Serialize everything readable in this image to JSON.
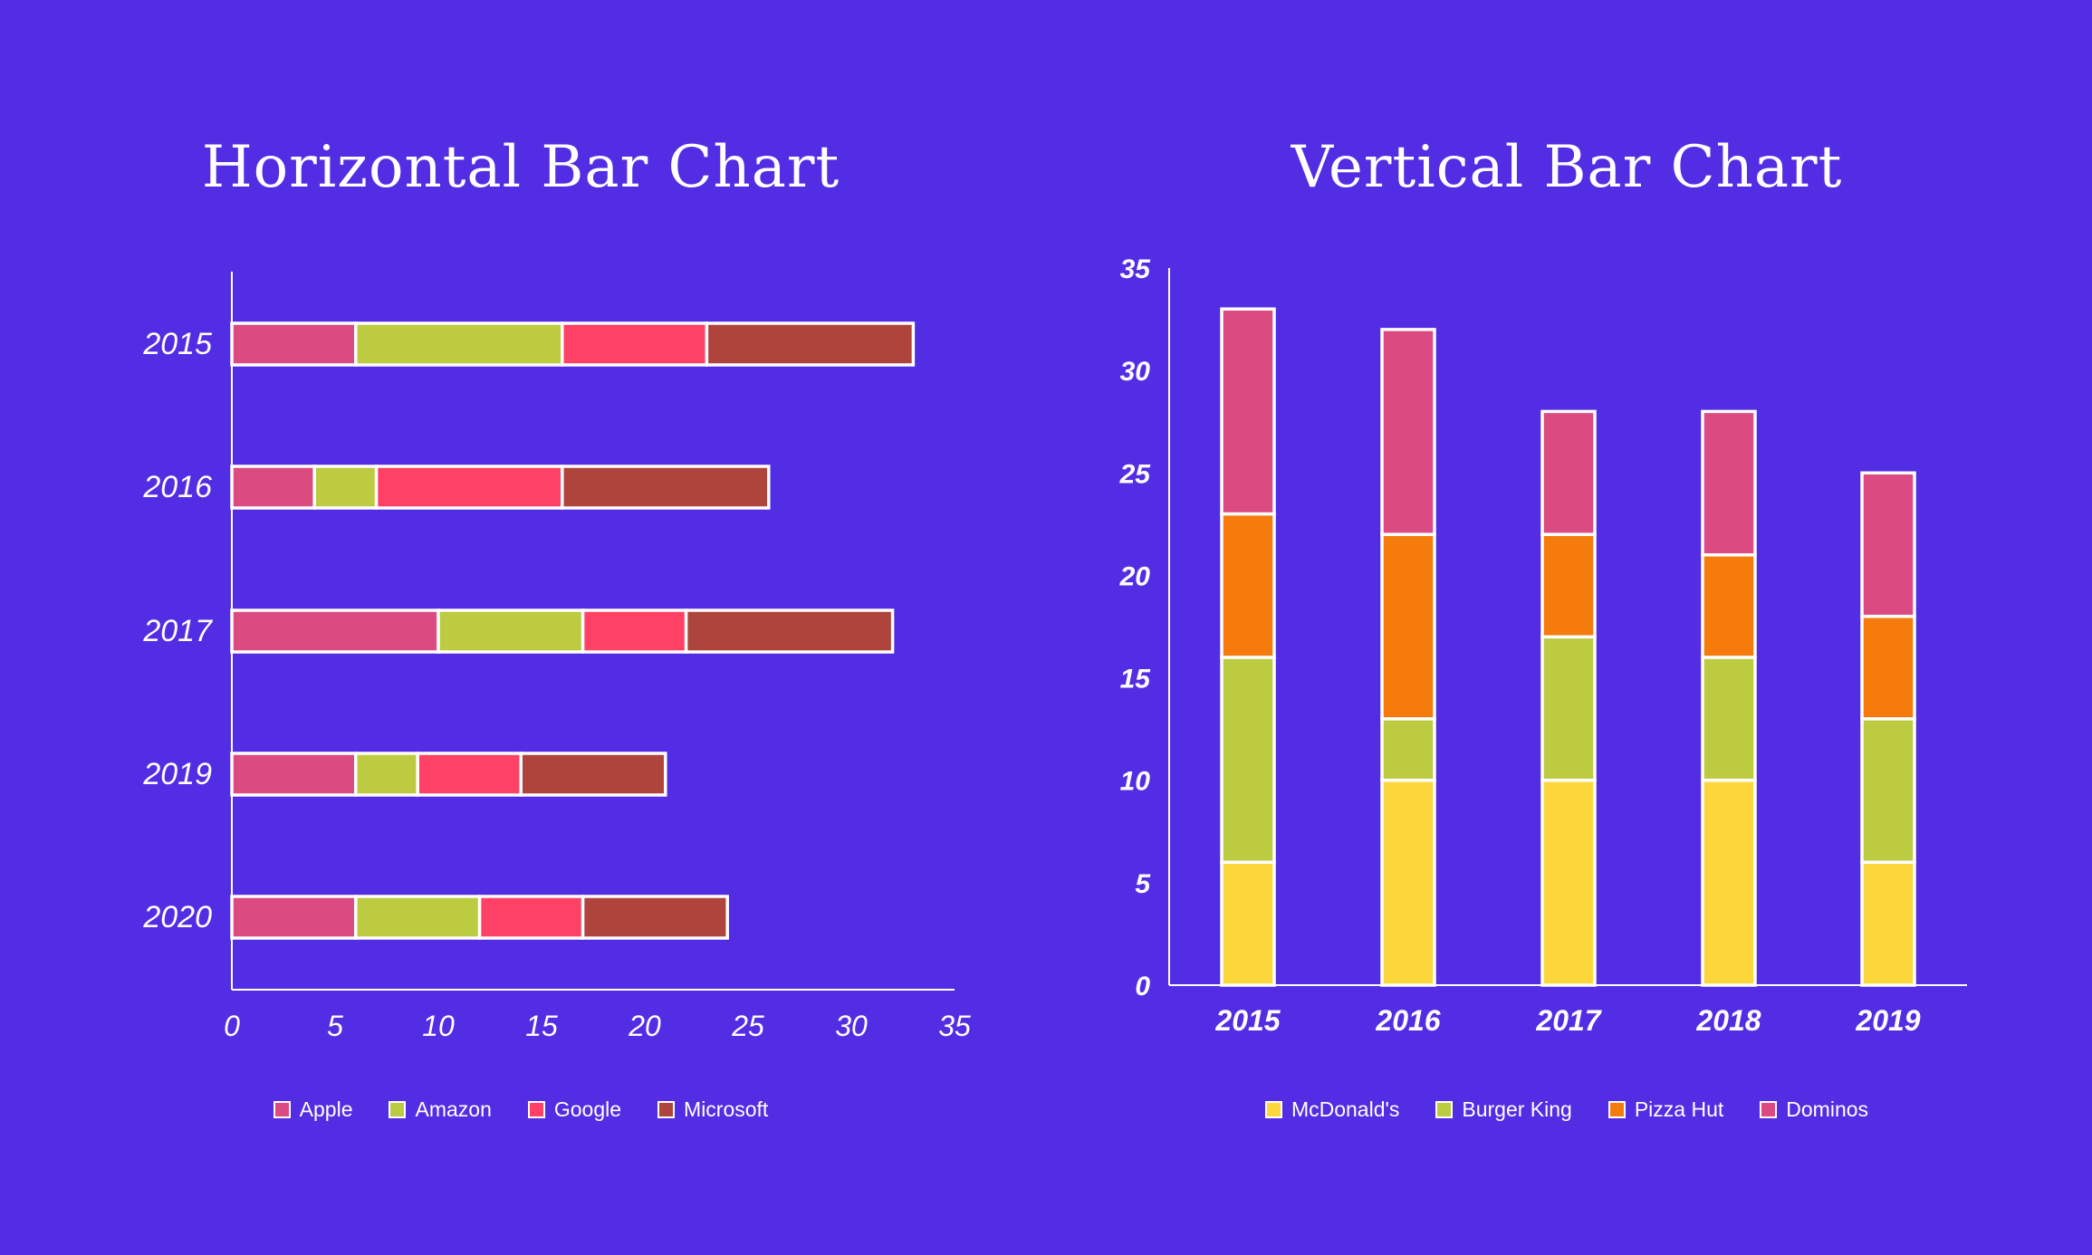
{
  "chart_data": [
    {
      "type": "bar",
      "orientation": "horizontal",
      "stacked": true,
      "title": "Horizontal Bar Chart",
      "categories": [
        "2015",
        "2016",
        "2017",
        "2019",
        "2020"
      ],
      "series": [
        {
          "name": "Apple",
          "color": "#dc4a82",
          "values": [
            6,
            4,
            10,
            6,
            6
          ]
        },
        {
          "name": "Amazon",
          "color": "#bccb40",
          "values": [
            10,
            3,
            7,
            3,
            6
          ]
        },
        {
          "name": "Google",
          "color": "#ff4165",
          "values": [
            7,
            9,
            5,
            5,
            5
          ]
        },
        {
          "name": "Microsoft",
          "color": "#ae443b",
          "values": [
            10,
            10,
            10,
            7,
            7
          ]
        }
      ],
      "xlim": [
        0,
        35
      ],
      "xticks": [
        "0",
        "5",
        "10",
        "15",
        "20",
        "25",
        "30",
        "35"
      ],
      "grid": false,
      "legend": "bottom"
    },
    {
      "type": "bar",
      "orientation": "vertical",
      "stacked": true,
      "title": "Vertical Bar Chart",
      "categories": [
        "2015",
        "2016",
        "2017",
        "2018",
        "2019"
      ],
      "series": [
        {
          "name": "McDonald's",
          "color": "#fcd73c",
          "values": [
            6,
            10,
            10,
            10,
            6
          ]
        },
        {
          "name": "Burger King",
          "color": "#bccb40",
          "values": [
            10,
            3,
            7,
            6,
            7
          ]
        },
        {
          "name": "Pizza Hut",
          "color": "#f57b0c",
          "values": [
            7,
            9,
            5,
            5,
            5
          ]
        },
        {
          "name": "Dominos",
          "color": "#dc4a82",
          "values": [
            10,
            10,
            6,
            7,
            7
          ]
        }
      ],
      "ylim": [
        0,
        35
      ],
      "yticks": [
        "0",
        "5",
        "10",
        "15",
        "20",
        "25",
        "30",
        "35"
      ],
      "grid": false,
      "legend": "bottom"
    }
  ]
}
